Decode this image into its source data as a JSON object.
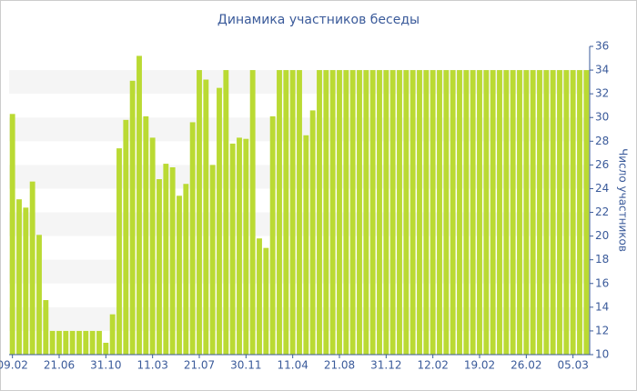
{
  "chart_data": {
    "type": "bar",
    "title": "Динамика участников беседы",
    "y_label": "Число участников",
    "categories": [
      "09.02",
      null,
      null,
      null,
      null,
      null,
      null,
      "21.06",
      null,
      null,
      null,
      null,
      null,
      null,
      "31.10",
      null,
      null,
      null,
      null,
      null,
      null,
      "11.03",
      null,
      null,
      null,
      null,
      null,
      null,
      "21.07",
      null,
      null,
      null,
      null,
      null,
      null,
      "30.11",
      null,
      null,
      null,
      null,
      null,
      null,
      "11.04",
      null,
      null,
      null,
      null,
      null,
      null,
      "21.08",
      null,
      null,
      null,
      null,
      null,
      null,
      "31.12",
      null,
      null,
      null,
      null,
      null,
      null,
      "12.02",
      null,
      null,
      null,
      null,
      null,
      null,
      "19.02",
      null,
      null,
      null,
      null,
      null,
      null,
      "26.02",
      null,
      null,
      null,
      null,
      null,
      null,
      "05.03",
      null,
      null
    ],
    "values": [
      30.3,
      23.1,
      22.4,
      24.6,
      20.1,
      14.6,
      12,
      12,
      12,
      12,
      12,
      12,
      12,
      12,
      11,
      13.4,
      27.4,
      29.8,
      33.1,
      35.2,
      30.1,
      28.3,
      24.8,
      26.1,
      25.8,
      23.4,
      24.4,
      29.6,
      34,
      33.2,
      26,
      32.5,
      34,
      27.8,
      28.3,
      28.2,
      34,
      19.8,
      19,
      30.1,
      34,
      34,
      34,
      34,
      28.5,
      30.6,
      34,
      34,
      34,
      34,
      34,
      34,
      34,
      34,
      34,
      34,
      34,
      34,
      34,
      34,
      34,
      34,
      34,
      34,
      34,
      34,
      34,
      34,
      34,
      34,
      34,
      34,
      34,
      34,
      34,
      34,
      34,
      34,
      34,
      34,
      34,
      34,
      34,
      34,
      34,
      34,
      34
    ],
    "color": "#bada33",
    "ylim": [
      10,
      36
    ],
    "yticks": [
      10,
      12,
      14,
      16,
      18,
      20,
      22,
      24,
      26,
      28,
      30,
      32,
      34,
      36
    ],
    "grid": true
  }
}
